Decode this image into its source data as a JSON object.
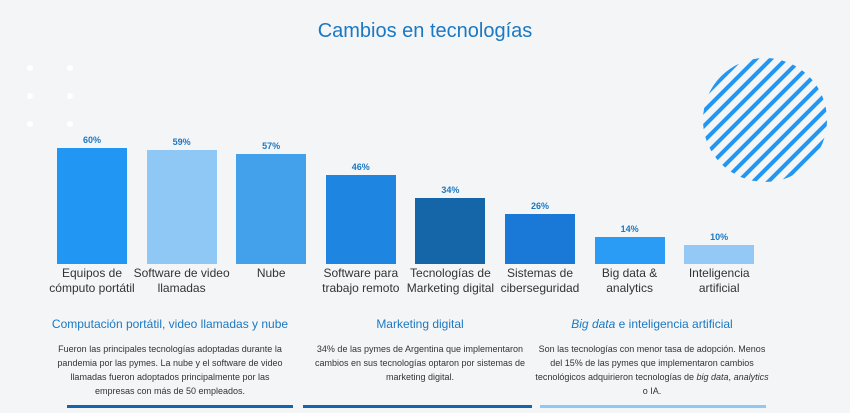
{
  "chart_data": {
    "type": "bar",
    "title": "Cambios en tecnologías",
    "categories": [
      "Equipos de cómputo portátil",
      "Software de video llamadas",
      "Nube",
      "Software para trabajo remoto",
      "Tecnologías de Marketing digital",
      "Sistemas de ciberseguridad",
      "Big data & analytics",
      "Inteligencia artificial"
    ],
    "values": [
      60,
      59,
      57,
      46,
      34,
      26,
      14,
      10
    ],
    "value_labels": [
      "60%",
      "59%",
      "57%",
      "46%",
      "34%",
      "26%",
      "14%",
      "10%"
    ],
    "colors": [
      "#2196f3",
      "#90c8f5",
      "#42a1ea",
      "#1e86e0",
      "#1566a8",
      "#1a78d6",
      "#2a9cf5",
      "#93c9f4"
    ]
  },
  "sections": [
    {
      "title_parts": [
        "Computación portátil, video llamadas y nube"
      ],
      "body_parts": [
        "Fueron las principales tecnologías adoptadas durante la pandemia por las pymes. La nube y el software de video llamadas fueron adoptados principalmente por las empresas con más de 50 empleados."
      ]
    },
    {
      "title_parts": [
        "Marketing digital"
      ],
      "body_parts": [
        "34% de las pymes de Argentina que implementaron cambios en sus tecnologías optaron por sistemas de marketing digital."
      ]
    },
    {
      "title_parts": [
        "",
        "Big data",
        " e inteligencia artificial"
      ],
      "body_parts": [
        "Son las tecnologías con menor tasa de adopción. Menos del 15% de las pymes que implementaron cambios tecnológicos adquirieron tecnologías de ",
        "big data",
        ", ",
        "analytics",
        " o IA."
      ]
    }
  ]
}
